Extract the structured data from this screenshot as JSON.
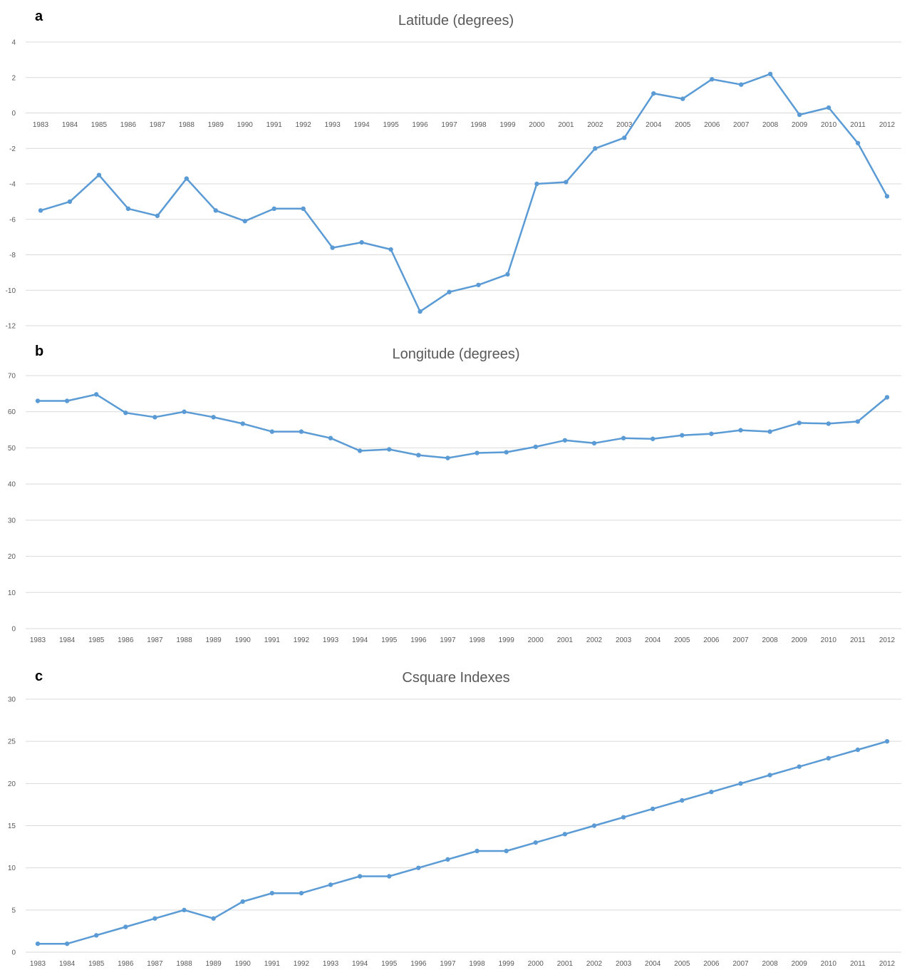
{
  "chart_data": [
    {
      "type": "line",
      "letter": "a",
      "title": "Latitude (degrees)",
      "xlabel": "",
      "ylabel": "",
      "categories": [
        "1983",
        "1984",
        "1985",
        "1986",
        "1987",
        "1988",
        "1989",
        "1990",
        "1991",
        "1992",
        "1993",
        "1994",
        "1995",
        "1996",
        "1997",
        "1998",
        "1999",
        "2000",
        "2001",
        "2002",
        "2003",
        "2004",
        "2005",
        "2006",
        "2007",
        "2008",
        "2009",
        "2010",
        "2011",
        "2012"
      ],
      "series": [
        {
          "values": [
            -5.5,
            -5.0,
            -3.5,
            -5.4,
            -5.8,
            -3.7,
            -5.5,
            -6.1,
            -5.4,
            -5.4,
            -7.6,
            -7.3,
            -7.7,
            -11.2,
            -10.1,
            -9.7,
            -9.1,
            -4.0,
            -3.9,
            -2.0,
            -1.4,
            1.1,
            0.8,
            1.9,
            1.6,
            2.2,
            -0.1,
            0.3,
            -1.7,
            -4.7
          ]
        }
      ],
      "ylim": [
        -12,
        4
      ],
      "yticks": [
        4,
        2,
        0,
        -2,
        -4,
        -6,
        -8,
        -10,
        -12
      ],
      "color": "#5b9bd5",
      "grid": true,
      "legend": "none"
    },
    {
      "type": "line",
      "letter": "b",
      "title": "Longitude (degrees)",
      "xlabel": "",
      "ylabel": "",
      "categories": [
        "1983",
        "1984",
        "1985",
        "1986",
        "1987",
        "1988",
        "1989",
        "1990",
        "1991",
        "1992",
        "1993",
        "1994",
        "1995",
        "1996",
        "1997",
        "1998",
        "1999",
        "2000",
        "2001",
        "2002",
        "2003",
        "2004",
        "2005",
        "2006",
        "2007",
        "2008",
        "2009",
        "2010",
        "2011",
        "2012"
      ],
      "series": [
        {
          "values": [
            63.0,
            63.0,
            64.8,
            59.7,
            58.5,
            60.0,
            58.5,
            56.7,
            54.5,
            54.5,
            52.7,
            49.2,
            49.6,
            48.0,
            47.2,
            48.6,
            48.8,
            50.3,
            52.1,
            51.3,
            52.7,
            52.5,
            53.5,
            53.9,
            54.9,
            54.5,
            56.9,
            56.7,
            57.3,
            64.0
          ]
        }
      ],
      "ylim": [
        0,
        70
      ],
      "yticks": [
        70,
        60,
        50,
        40,
        30,
        20,
        10,
        0
      ],
      "color": "#5b9bd5",
      "grid": true,
      "legend": "none"
    },
    {
      "type": "line",
      "letter": "c",
      "title": "Csquare Indexes",
      "xlabel": "",
      "ylabel": "",
      "categories": [
        "1983",
        "1984",
        "1985",
        "1986",
        "1987",
        "1988",
        "1989",
        "1990",
        "1991",
        "1992",
        "1993",
        "1994",
        "1995",
        "1996",
        "1997",
        "1998",
        "1999",
        "2000",
        "2001",
        "2002",
        "2003",
        "2004",
        "2005",
        "2006",
        "2007",
        "2008",
        "2009",
        "2010",
        "2011",
        "2012"
      ],
      "series": [
        {
          "values": [
            1,
            1,
            2,
            3,
            4,
            5,
            4,
            6,
            7,
            7,
            8,
            9,
            9,
            10,
            11,
            12,
            12,
            13,
            14,
            15,
            16,
            17,
            18,
            19,
            20,
            21,
            22,
            23,
            24,
            25
          ]
        }
      ],
      "ylim": [
        0,
        30
      ],
      "yticks": [
        30,
        25,
        20,
        15,
        10,
        5,
        0
      ],
      "color": "#5b9bd5",
      "grid": true,
      "legend": "none"
    }
  ]
}
